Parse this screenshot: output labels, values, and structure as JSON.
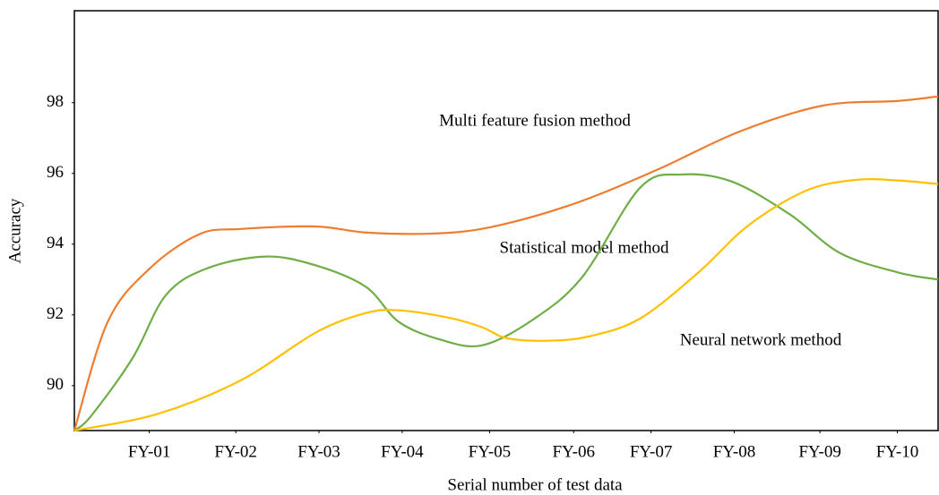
{
  "chart_data": {
    "type": "line",
    "x_label": "Serial number of test data",
    "y_label": "Accuracy",
    "xlim": [
      0,
      10.38
    ],
    "xticks": [
      {
        "value": 0.9,
        "label": "FY-01"
      },
      {
        "value": 1.94,
        "label": "FY-02"
      },
      {
        "value": 2.94,
        "label": "FY-03"
      },
      {
        "value": 3.94,
        "label": "FY-04"
      },
      {
        "value": 4.99,
        "label": "FY-05"
      },
      {
        "value": 6.0,
        "label": "FY-06"
      },
      {
        "value": 6.93,
        "label": "FY-07"
      },
      {
        "value": 7.93,
        "label": "FY-08"
      },
      {
        "value": 8.96,
        "label": "FY-09"
      },
      {
        "value": 9.89,
        "label": "FY-10"
      }
    ],
    "ylim": [
      88.73,
      100.6
    ],
    "yticks": [
      90,
      92,
      94,
      96,
      98
    ],
    "grid": false,
    "annotations": [
      "Multi feature fusion method",
      "Statistical model method",
      "Neural network method"
    ],
    "series": [
      {
        "color": "#ed7d31",
        "x": [
          0,
          0.4,
          0.9,
          1.5,
          2,
          2.9,
          3.5,
          4.3,
          5,
          6,
          7,
          8,
          9,
          9.9,
          10.38
        ],
        "values": [
          88.73,
          91.8,
          93.3,
          94.28,
          94.43,
          94.5,
          94.33,
          94.3,
          94.48,
          95.14,
          96.1,
          97.19,
          97.92,
          98.05,
          98.18
        ]
      },
      {
        "color": "#70ad47",
        "x": [
          0,
          0.2,
          0.7,
          1.1,
          1.6,
          2.3,
          2.9,
          3.5,
          3.9,
          4.4,
          4.9,
          5.5,
          6.1,
          6.8,
          7.3,
          7.9,
          8.6,
          9.2,
          9.9,
          10.38
        ],
        "values": [
          88.73,
          89.14,
          90.78,
          92.56,
          93.32,
          93.65,
          93.4,
          92.8,
          91.8,
          91.3,
          91.14,
          91.85,
          93.06,
          95.6,
          95.97,
          95.77,
          94.84,
          93.75,
          93.2,
          93.0
        ]
      },
      {
        "color": "#ffc000",
        "x": [
          0,
          1,
          2,
          2.9,
          3.5,
          3.9,
          4.5,
          4.9,
          5.2,
          5.7,
          6.2,
          6.8,
          7.5,
          8.1,
          8.8,
          9.4,
          9.9,
          10.38
        ],
        "values": [
          88.73,
          89.2,
          90.15,
          91.5,
          92.05,
          92.13,
          91.92,
          91.65,
          91.34,
          91.27,
          91.4,
          91.9,
          93.2,
          94.53,
          95.52,
          95.82,
          95.8,
          95.7
        ]
      }
    ]
  }
}
